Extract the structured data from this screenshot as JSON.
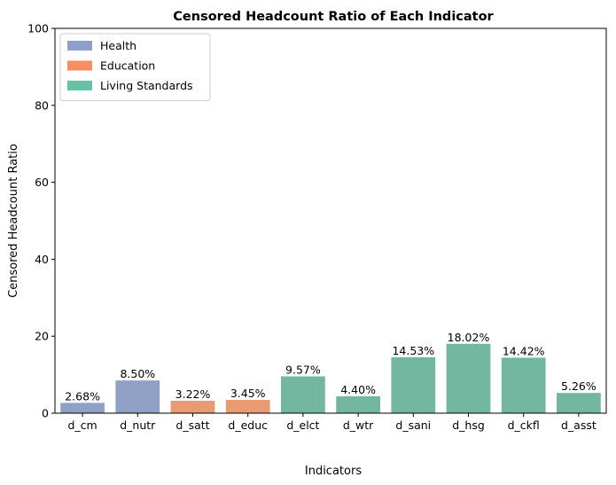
{
  "chart_data": {
    "type": "bar",
    "title": "Censored Headcount Ratio of Each Indicator",
    "xlabel": "Indicators",
    "ylabel": "Censored Headcount Ratio",
    "ylim": [
      0,
      100
    ],
    "yticks": [
      0,
      20,
      40,
      60,
      80,
      100
    ],
    "grid": false,
    "legend_position": "top-left",
    "legend": [
      {
        "name": "Health",
        "color": "#8da0cb"
      },
      {
        "name": "Education",
        "color": "#fc8d62"
      },
      {
        "name": "Living Standards",
        "color": "#66c2a5"
      }
    ],
    "bar_colors": {
      "Health": "#91a1c6",
      "Education": "#e99a73",
      "Living Standards": "#73b7a1"
    },
    "categories": [
      "d_cm",
      "d_nutr",
      "d_satt",
      "d_educ",
      "d_elct",
      "d_wtr",
      "d_sani",
      "d_hsg",
      "d_ckfl",
      "d_asst"
    ],
    "groups": [
      "Health",
      "Health",
      "Education",
      "Education",
      "Living Standards",
      "Living Standards",
      "Living Standards",
      "Living Standards",
      "Living Standards",
      "Living Standards"
    ],
    "values": [
      2.68,
      8.5,
      3.22,
      3.45,
      9.57,
      4.4,
      14.53,
      18.02,
      14.42,
      5.26
    ],
    "data_labels": [
      "2.68%",
      "8.50%",
      "3.22%",
      "3.45%",
      "9.57%",
      "4.40%",
      "14.53%",
      "18.02%",
      "14.42%",
      "5.26%"
    ]
  }
}
